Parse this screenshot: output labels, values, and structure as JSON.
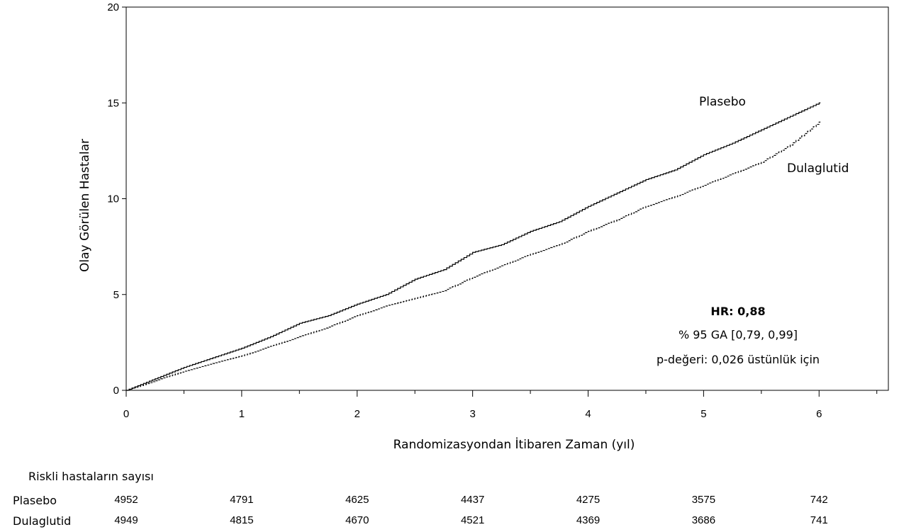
{
  "chart_data": {
    "type": "line",
    "xlabel": "Randomizasyondan İtibaren Zaman (yıl)",
    "ylabel": "Olay Görülen Hastalar",
    "xlim": [
      0,
      6.6
    ],
    "ylim": [
      0,
      20
    ],
    "xticks": [
      0,
      1,
      2,
      3,
      4,
      5,
      6
    ],
    "yticks": [
      0,
      5,
      10,
      15,
      20
    ],
    "grid": false,
    "legend": "inline labels at line ends",
    "series": [
      {
        "name": "Plasebo",
        "style": "solid",
        "x": [
          0,
          0.25,
          0.5,
          0.75,
          1.0,
          1.25,
          1.5,
          1.75,
          2.0,
          2.25,
          2.5,
          2.75,
          3.0,
          3.25,
          3.5,
          3.75,
          4.0,
          4.25,
          4.5,
          4.75,
          5.0,
          5.25,
          5.5,
          5.75,
          6.0
        ],
        "y": [
          0,
          0.6,
          1.2,
          1.7,
          2.2,
          2.8,
          3.5,
          3.9,
          4.5,
          5.0,
          5.8,
          6.3,
          7.2,
          7.6,
          8.3,
          8.8,
          9.6,
          10.3,
          11.0,
          11.5,
          12.3,
          12.9,
          13.6,
          14.3,
          15.0
        ]
      },
      {
        "name": "Dulaglutid",
        "style": "dashed",
        "x": [
          0,
          0.25,
          0.5,
          0.75,
          1.0,
          1.25,
          1.5,
          1.75,
          2.0,
          2.25,
          2.5,
          2.75,
          3.0,
          3.25,
          3.5,
          3.75,
          4.0,
          4.25,
          4.5,
          4.75,
          5.0,
          5.25,
          5.5,
          5.75,
          6.0
        ],
        "y": [
          0,
          0.5,
          1.0,
          1.4,
          1.8,
          2.3,
          2.8,
          3.3,
          3.9,
          4.4,
          4.8,
          5.2,
          5.9,
          6.5,
          7.1,
          7.6,
          8.3,
          8.9,
          9.6,
          10.1,
          10.7,
          11.3,
          11.9,
          12.8,
          14.0
        ]
      }
    ],
    "annotation": {
      "hr": "HR: 0,88",
      "ci": "% 95 GA [0,79, 0,99]",
      "p": "p-değeri: 0,026 üstünlük için"
    },
    "risk_table": {
      "title": "Riskli hastaların sayısı",
      "rows": [
        {
          "name": "Plasebo",
          "values": [
            "4952",
            "4791",
            "4625",
            "4437",
            "4275",
            "3575",
            "742"
          ]
        },
        {
          "name": "Dulaglutid",
          "values": [
            "4949",
            "4815",
            "4670",
            "4521",
            "4369",
            "3686",
            "741"
          ]
        }
      ]
    }
  }
}
